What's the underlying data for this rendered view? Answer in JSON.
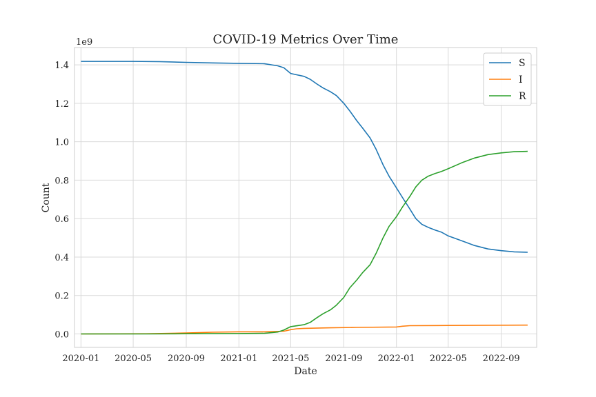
{
  "chart_data": {
    "type": "line",
    "title": "COVID-19 Metrics Over Time",
    "xlabel": "Date",
    "ylabel": "Count",
    "y_offset_label": "1e9",
    "y_scale": 1000000000.0,
    "xlim": [
      "2019-12-17",
      "2022-11-22"
    ],
    "ylim": [
      -0.07,
      1.49
    ],
    "x_ticks": [
      {
        "date": "2020-01-01",
        "label": "2020-01"
      },
      {
        "date": "2020-05-01",
        "label": "2020-05"
      },
      {
        "date": "2020-09-01",
        "label": "2020-09"
      },
      {
        "date": "2021-01-01",
        "label": "2021-01"
      },
      {
        "date": "2021-05-01",
        "label": "2021-05"
      },
      {
        "date": "2021-09-01",
        "label": "2021-09"
      },
      {
        "date": "2022-01-01",
        "label": "2022-01"
      },
      {
        "date": "2022-05-01",
        "label": "2022-05"
      },
      {
        "date": "2022-09-01",
        "label": "2022-09"
      }
    ],
    "y_ticks": [
      {
        "value": 0.0,
        "label": "0.0"
      },
      {
        "value": 0.2,
        "label": "0.2"
      },
      {
        "value": 0.4,
        "label": "0.4"
      },
      {
        "value": 0.6,
        "label": "0.6"
      },
      {
        "value": 0.8,
        "label": "0.8"
      },
      {
        "value": 1.0,
        "label": "1.0"
      },
      {
        "value": 1.2,
        "label": "1.2"
      },
      {
        "value": 1.4,
        "label": "1.4"
      }
    ],
    "grid": true,
    "legend_position": "top-right",
    "series": [
      {
        "name": "S",
        "color": "#1f77b4",
        "points": [
          [
            "2020-01-01",
            1.418
          ],
          [
            "2020-03-01",
            1.418
          ],
          [
            "2020-05-01",
            1.418
          ],
          [
            "2020-07-01",
            1.417
          ],
          [
            "2020-09-01",
            1.413
          ],
          [
            "2020-11-01",
            1.41
          ],
          [
            "2021-01-01",
            1.408
          ],
          [
            "2021-03-01",
            1.406
          ],
          [
            "2021-04-01",
            1.395
          ],
          [
            "2021-04-15",
            1.385
          ],
          [
            "2021-05-01",
            1.355
          ],
          [
            "2021-06-01",
            1.34
          ],
          [
            "2021-06-15",
            1.325
          ],
          [
            "2021-07-01",
            1.3
          ],
          [
            "2021-07-15",
            1.28
          ],
          [
            "2021-08-01",
            1.26
          ],
          [
            "2021-08-15",
            1.24
          ],
          [
            "2021-09-01",
            1.2
          ],
          [
            "2021-09-15",
            1.16
          ],
          [
            "2021-10-01",
            1.11
          ],
          [
            "2021-10-15",
            1.07
          ],
          [
            "2021-11-01",
            1.02
          ],
          [
            "2021-11-15",
            0.96
          ],
          [
            "2021-12-01",
            0.88
          ],
          [
            "2021-12-15",
            0.82
          ],
          [
            "2022-01-01",
            0.76
          ],
          [
            "2022-01-15",
            0.71
          ],
          [
            "2022-02-01",
            0.65
          ],
          [
            "2022-02-15",
            0.6
          ],
          [
            "2022-03-01",
            0.57
          ],
          [
            "2022-03-15",
            0.555
          ],
          [
            "2022-04-01",
            0.54
          ],
          [
            "2022-04-15",
            0.53
          ],
          [
            "2022-05-01",
            0.51
          ],
          [
            "2022-06-01",
            0.485
          ],
          [
            "2022-07-01",
            0.46
          ],
          [
            "2022-08-01",
            0.442
          ],
          [
            "2022-09-01",
            0.433
          ],
          [
            "2022-10-01",
            0.427
          ],
          [
            "2022-11-01",
            0.425
          ]
        ]
      },
      {
        "name": "I",
        "color": "#ff7f0e",
        "points": [
          [
            "2020-01-01",
            0.0
          ],
          [
            "2020-06-01",
            0.001
          ],
          [
            "2020-09-01",
            0.005
          ],
          [
            "2020-11-01",
            0.009
          ],
          [
            "2021-01-01",
            0.011
          ],
          [
            "2021-03-01",
            0.011
          ],
          [
            "2021-04-15",
            0.014
          ],
          [
            "2021-05-01",
            0.022
          ],
          [
            "2021-05-15",
            0.027
          ],
          [
            "2021-06-01",
            0.029
          ],
          [
            "2021-08-01",
            0.032
          ],
          [
            "2021-10-01",
            0.034
          ],
          [
            "2022-01-01",
            0.036
          ],
          [
            "2022-01-15",
            0.04
          ],
          [
            "2022-02-01",
            0.043
          ],
          [
            "2022-05-01",
            0.044
          ],
          [
            "2022-11-01",
            0.046
          ]
        ]
      },
      {
        "name": "R",
        "color": "#2ca02c",
        "points": [
          [
            "2020-01-01",
            0.0
          ],
          [
            "2020-06-01",
            0.0
          ],
          [
            "2020-09-01",
            0.001
          ],
          [
            "2021-01-01",
            0.002
          ],
          [
            "2021-03-01",
            0.003
          ],
          [
            "2021-04-01",
            0.01
          ],
          [
            "2021-04-15",
            0.02
          ],
          [
            "2021-05-01",
            0.038
          ],
          [
            "2021-06-01",
            0.048
          ],
          [
            "2021-06-15",
            0.06
          ],
          [
            "2021-07-01",
            0.085
          ],
          [
            "2021-07-15",
            0.105
          ],
          [
            "2021-08-01",
            0.125
          ],
          [
            "2021-08-15",
            0.15
          ],
          [
            "2021-09-01",
            0.19
          ],
          [
            "2021-09-15",
            0.24
          ],
          [
            "2021-10-01",
            0.28
          ],
          [
            "2021-10-15",
            0.32
          ],
          [
            "2021-11-01",
            0.36
          ],
          [
            "2021-11-15",
            0.42
          ],
          [
            "2021-12-01",
            0.5
          ],
          [
            "2021-12-15",
            0.56
          ],
          [
            "2022-01-01",
            0.61
          ],
          [
            "2022-01-15",
            0.66
          ],
          [
            "2022-02-01",
            0.715
          ],
          [
            "2022-02-15",
            0.765
          ],
          [
            "2022-03-01",
            0.8
          ],
          [
            "2022-03-15",
            0.82
          ],
          [
            "2022-04-01",
            0.835
          ],
          [
            "2022-04-15",
            0.845
          ],
          [
            "2022-05-01",
            0.86
          ],
          [
            "2022-06-01",
            0.89
          ],
          [
            "2022-07-01",
            0.915
          ],
          [
            "2022-08-01",
            0.933
          ],
          [
            "2022-09-01",
            0.942
          ],
          [
            "2022-10-01",
            0.948
          ],
          [
            "2022-11-01",
            0.95
          ]
        ]
      }
    ]
  }
}
